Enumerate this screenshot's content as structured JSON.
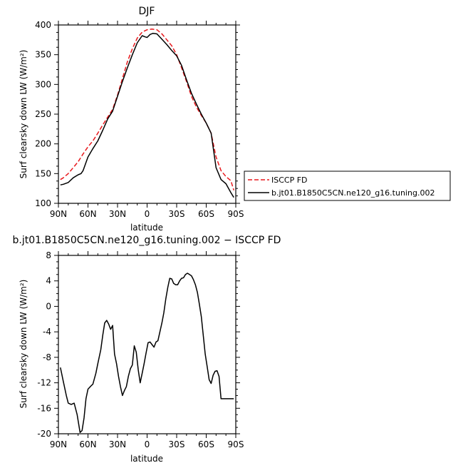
{
  "chart_data": [
    {
      "type": "line",
      "title": "DJF",
      "xlabel": "latitude",
      "ylabel": "Surf clearsky down LW (W/m²)",
      "ylim": [
        100,
        400
      ],
      "yticks": [
        100,
        150,
        200,
        250,
        300,
        350,
        400
      ],
      "xlim": [
        -90,
        90
      ],
      "xticks": [
        -90,
        -60,
        -30,
        0,
        30,
        60,
        90
      ],
      "xtick_labels": [
        "90N",
        "60N",
        "30N",
        "0",
        "30S",
        "60S",
        "90S"
      ],
      "legend": {
        "placement": "outside-right"
      },
      "series": [
        {
          "name": "ISCCP FD",
          "color": "#e8191d",
          "dash": "dashed",
          "x": [
            -88,
            -85,
            -80,
            -75,
            -70,
            -65,
            -60,
            -55,
            -50,
            -45,
            -40,
            -35,
            -30,
            -25,
            -20,
            -15,
            -10,
            -5,
            0,
            5,
            10,
            15,
            20,
            25,
            30,
            35,
            40,
            45,
            50,
            55,
            60,
            65,
            70,
            75,
            80,
            85,
            88
          ],
          "y": [
            140,
            143,
            150,
            160,
            170,
            183,
            195,
            205,
            218,
            232,
            245,
            258,
            282,
            310,
            338,
            360,
            378,
            388,
            392,
            393,
            392,
            385,
            375,
            365,
            350,
            328,
            305,
            280,
            262,
            248,
            235,
            218,
            178,
            155,
            145,
            138,
            122
          ]
        },
        {
          "name": "b.jt01.B1850C5CN.ne120_g16.tuning.002",
          "color": "#000000",
          "dash": "solid",
          "x": [
            -88,
            -85,
            -80,
            -75,
            -70,
            -67,
            -65,
            -60,
            -55,
            -50,
            -45,
            -40,
            -35,
            -30,
            -25,
            -20,
            -15,
            -10,
            -5,
            -2,
            0,
            3,
            6,
            10,
            15,
            20,
            25,
            30,
            35,
            40,
            45,
            50,
            55,
            60,
            65,
            70,
            75,
            80,
            85,
            88
          ],
          "y": [
            131,
            132,
            135,
            143,
            148,
            150,
            155,
            178,
            192,
            205,
            223,
            242,
            255,
            280,
            305,
            328,
            350,
            370,
            382,
            380,
            379,
            384,
            386,
            385,
            376,
            367,
            357,
            348,
            332,
            308,
            285,
            267,
            250,
            235,
            218,
            160,
            140,
            133,
            118,
            110
          ]
        }
      ]
    },
    {
      "type": "line",
      "title": "b.jt01.B1850C5CN.ne120_g16.tuning.002 − ISCCP FD",
      "xlabel": "latitude",
      "ylabel": "Surf clearsky down LW (W/m²)",
      "ylim": [
        -20,
        8
      ],
      "yticks": [
        -20,
        -16,
        -12,
        -8,
        -4,
        0,
        4,
        8
      ],
      "xlim": [
        -90,
        90
      ],
      "xticks": [
        -90,
        -60,
        -30,
        0,
        30,
        60,
        90
      ],
      "xtick_labels": [
        "90N",
        "60N",
        "30N",
        "0",
        "30S",
        "60S",
        "90S"
      ],
      "series": [
        {
          "color": "#000000",
          "dash": "solid",
          "x": [
            -88,
            -85,
            -82,
            -80,
            -77,
            -74,
            -71,
            -68,
            -66,
            -64,
            -62,
            -60,
            -57,
            -55,
            -52,
            -50,
            -47,
            -45,
            -43,
            -41,
            -39,
            -37,
            -35,
            -33,
            -31,
            -29,
            -27,
            -25,
            -23,
            -21,
            -19,
            -17,
            -15,
            -13,
            -11,
            -9,
            -7,
            -5,
            -3,
            -1,
            1,
            3,
            5,
            7,
            9,
            11,
            13,
            15,
            17,
            19,
            21,
            23,
            25,
            27,
            29,
            31,
            33,
            35,
            37,
            39,
            41,
            43,
            45,
            47,
            49,
            51,
            53,
            55,
            57,
            59,
            61,
            63,
            65,
            67,
            69,
            71,
            73,
            75,
            77,
            79,
            81,
            83,
            85,
            87,
            88
          ],
          "y": [
            -9.6,
            -11.8,
            -14,
            -15.2,
            -15.4,
            -15.2,
            -17,
            -19.8,
            -19.5,
            -17.5,
            -14.5,
            -13,
            -12.5,
            -12.2,
            -10.5,
            -9,
            -6.8,
            -4.5,
            -2.6,
            -2.2,
            -2.8,
            -3.6,
            -3,
            -7.5,
            -9,
            -11,
            -12.6,
            -14,
            -13.2,
            -12.6,
            -11,
            -9.8,
            -9.2,
            -6.2,
            -7.2,
            -10,
            -12,
            -10.5,
            -9,
            -7.3,
            -5.7,
            -5.6,
            -6,
            -6.4,
            -5.6,
            -5.4,
            -4,
            -2.6,
            -1,
            1.2,
            3,
            4.4,
            4.3,
            3.6,
            3.4,
            3.4,
            4.0,
            4.4,
            4.5,
            5.0,
            5.2,
            5.0,
            4.8,
            4.2,
            3.4,
            2.2,
            0.4,
            -1.6,
            -4.6,
            -7.5,
            -9.5,
            -11.5,
            -12.1,
            -10.8,
            -10.2,
            -10.1,
            -11,
            -14.5,
            -14.5,
            -14.5,
            -14.5,
            -14.5,
            -14.5,
            -14.5,
            -14.5
          ]
        }
      ]
    }
  ]
}
